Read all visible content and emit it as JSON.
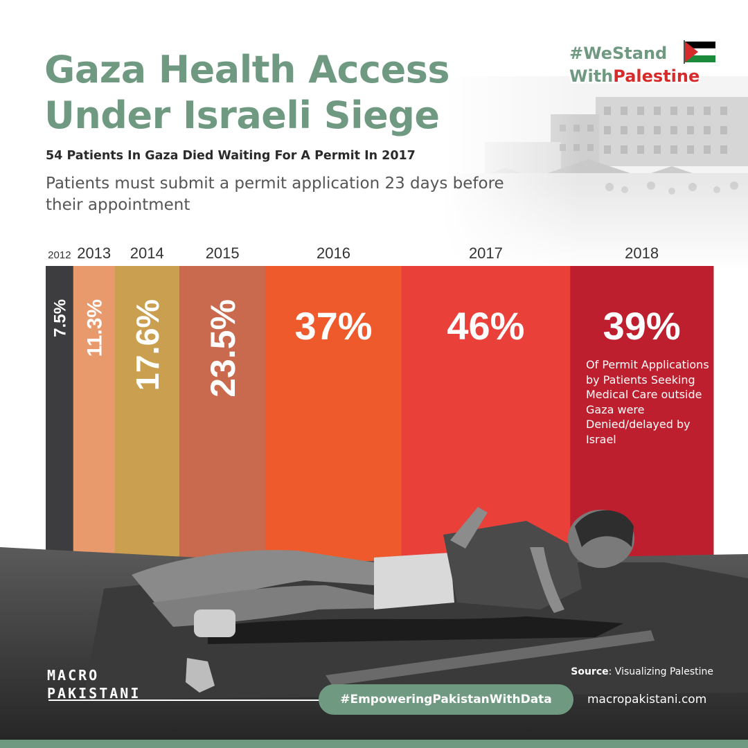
{
  "header": {
    "title_line1": "Gaza Health Access",
    "title_line2": "Under Israeli Siege",
    "subtitle": "54 Patients In Gaza Died Waiting For A Permit In 2017",
    "description": "Patients must submit a permit application 23 days before their appointment"
  },
  "badge": {
    "line1": "#WeStand",
    "line2_prefix": "With",
    "line2_highlight": "Palestine",
    "flag_icon": "palestine-flag-icon"
  },
  "chart_data": {
    "type": "bar",
    "title": "Gaza Health Access Under Israeli Siege",
    "categories": [
      "2012",
      "2013",
      "2014",
      "2015",
      "2016",
      "2017",
      "2018"
    ],
    "values": [
      7.5,
      11.3,
      17.6,
      23.5,
      37,
      46,
      39
    ],
    "value_labels": [
      "7.5%",
      "11.3%",
      "17.6%",
      "23.5%",
      "37%",
      "46%",
      "39%"
    ],
    "colors": [
      "#3d3d3f",
      "#e89a6c",
      "#caa050",
      "#c96a4e",
      "#ee5a2c",
      "#e9403a",
      "#bd1f2e"
    ],
    "annotation": "Of Permit Applications by Patients Seeking Medical Care outside Gaza were Denied/delayed by Israel",
    "note": "Bar width is proportional to the percentage; label orientation vertical for narrow bars."
  },
  "footer": {
    "source_label": "Source",
    "source_text": ": Visualizing Palestine",
    "hashtag": "#EmpoweringPakistanWithData",
    "website": "macropakistani.com",
    "logo_line1": "MACRO",
    "logo_line2": "PAKISTANI"
  },
  "colors": {
    "accent": "#6f9a81",
    "highlight": "#d62b2b"
  }
}
